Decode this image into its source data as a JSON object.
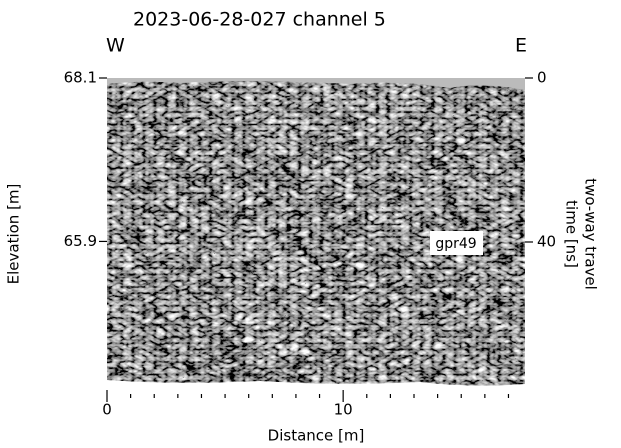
{
  "chart_data": {
    "type": "image",
    "title": "2023-06-28-027 channel 5",
    "left_label": "W",
    "right_label": "E",
    "x_label": "Distance [m]",
    "y_label": "Elevation [m]",
    "y2_label": [
      "two-way travel",
      "time [ns]"
    ],
    "annotation": "gpr49",
    "xlim": [
      0,
      17.7
    ],
    "xticks": [
      0,
      10
    ],
    "xminorticks": [
      1,
      2,
      3,
      4,
      5,
      6,
      7,
      8,
      9,
      11,
      12,
      13,
      14,
      15,
      16,
      17
    ],
    "ylim": [
      63.9,
      68.1
    ],
    "yticks": [
      68.1,
      65.9
    ],
    "y2lim": [
      76.1,
      0
    ],
    "y2ticks": [
      0,
      40
    ]
  }
}
